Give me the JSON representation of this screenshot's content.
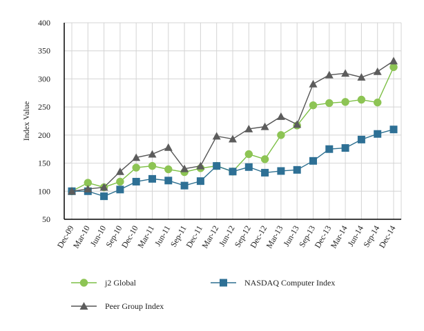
{
  "chart_data": {
    "type": "line",
    "title": "",
    "xlabel": "",
    "ylabel": "Index Value",
    "ylim": [
      50,
      400
    ],
    "yticks": [
      50,
      100,
      150,
      200,
      250,
      300,
      350,
      400
    ],
    "grid": true,
    "legend_position": "bottom",
    "categories": [
      "Dec-09",
      "Mar-10",
      "Jun-10",
      "Sep-10",
      "Dec-10",
      "Mar-11",
      "Jun-11",
      "Sep-11",
      "Dec-11",
      "Mar-12",
      "Jun-12",
      "Sep-12",
      "Dec-12",
      "Mar-13",
      "Jun-13",
      "Sep-13",
      "Dec-13",
      "Mar-14",
      "Jun-14",
      "Sep-14",
      "Dec-14"
    ],
    "series": [
      {
        "name": "j2 Global",
        "marker": "circle",
        "line_color": "#7cbf45",
        "marker_color": "#8dc454",
        "values": [
          100,
          115,
          107,
          117,
          142,
          145,
          139,
          134,
          141,
          145,
          135,
          166,
          157,
          200,
          217,
          253,
          257,
          259,
          263,
          258,
          321
        ]
      },
      {
        "name": "NASDAQ Computer Index",
        "marker": "square",
        "line_color": "#2c6f8f",
        "marker_color": "#2e7095",
        "values": [
          100,
          100,
          91,
          103,
          117,
          122,
          119,
          110,
          118,
          145,
          135,
          143,
          133,
          136,
          138,
          154,
          175,
          177,
          192,
          202,
          210
        ]
      },
      {
        "name": "Peer Group Index",
        "marker": "triangle",
        "line_color": "#555555",
        "marker_color": "#5c5c5c",
        "values": [
          100,
          104,
          107,
          135,
          160,
          166,
          178,
          140,
          145,
          198,
          193,
          211,
          215,
          233,
          219,
          291,
          307,
          310,
          303,
          313,
          332
        ]
      }
    ]
  }
}
